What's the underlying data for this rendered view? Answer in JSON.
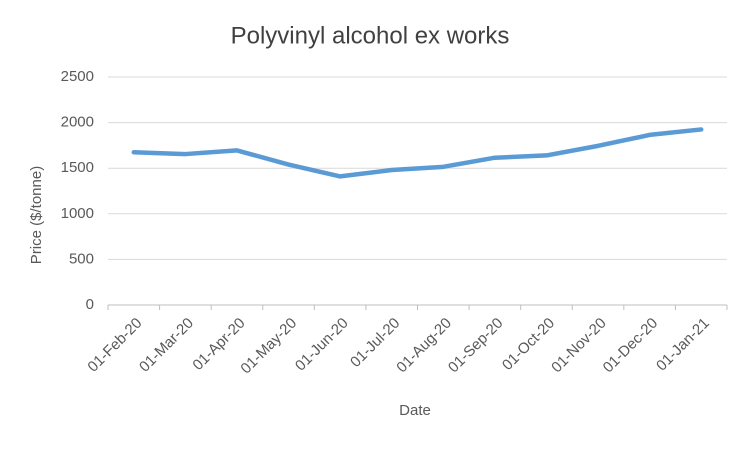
{
  "chart_data": {
    "type": "line",
    "title": "Polyvinyl alcohol ex works",
    "x_label": "Date",
    "y_label": "Price ($/tonne)",
    "x": [
      "01-Feb-20",
      "01-Mar-20",
      "01-Apr-20",
      "01-May-20",
      "01-Jun-20",
      "01-Jul-20",
      "01-Aug-20",
      "01-Sep-20",
      "01-Oct-20",
      "01-Nov-20",
      "01-Dec-20",
      "01-Jan-21"
    ],
    "values": [
      1675,
      1655,
      1695,
      1540,
      1410,
      1480,
      1515,
      1615,
      1640,
      1745,
      1865,
      1925
    ],
    "color": "#5b9bd5",
    "ylim": [
      0,
      2500
    ],
    "yticks": [
      0,
      500,
      1000,
      1500,
      2000,
      2500
    ],
    "grid": true
  }
}
